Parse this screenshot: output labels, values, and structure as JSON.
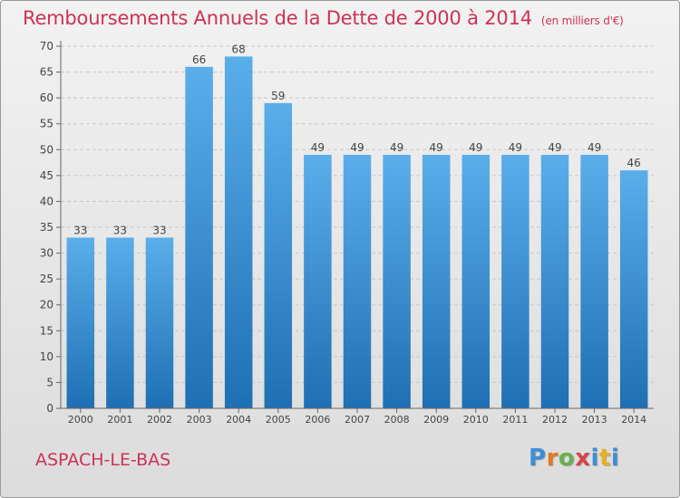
{
  "title": "Remboursements Annuels de la Dette de 2000 à 2014",
  "unit": "(en milliers d'€)",
  "city": "ASPACH-LE-BAS",
  "logo": {
    "letters": [
      "P",
      "r",
      "o",
      "x",
      "i",
      "t",
      "i"
    ],
    "colors": [
      "#3d8fd6",
      "#e07a1f",
      "#6ab04c",
      "#d64545",
      "#3d8fd6",
      "#e8b020",
      "#3d8fd6"
    ]
  },
  "colors": {
    "title": "#cc3355",
    "bar_top": "#5aaeea",
    "bar_bottom": "#1f6fb4",
    "grid": "#c8c8c8"
  },
  "chart_data": {
    "type": "bar",
    "categories": [
      "2000",
      "2001",
      "2002",
      "2003",
      "2004",
      "2005",
      "2006",
      "2007",
      "2008",
      "2009",
      "2010",
      "2011",
      "2012",
      "2013",
      "2014"
    ],
    "values": [
      33,
      33,
      33,
      66,
      68,
      59,
      49,
      49,
      49,
      49,
      49,
      49,
      49,
      49,
      46
    ],
    "data_labels": [
      "33",
      "33",
      "33",
      "66",
      "68",
      "59",
      "49",
      "49",
      "49",
      "49",
      "49",
      "49",
      "49",
      "49",
      "46"
    ],
    "y_ticks": [
      "0",
      "5",
      "10",
      "15",
      "20",
      "25",
      "30",
      "35",
      "40",
      "45",
      "50",
      "55",
      "60",
      "65",
      "70"
    ],
    "ylim": [
      0,
      70
    ],
    "grid": true,
    "legend": "none"
  }
}
